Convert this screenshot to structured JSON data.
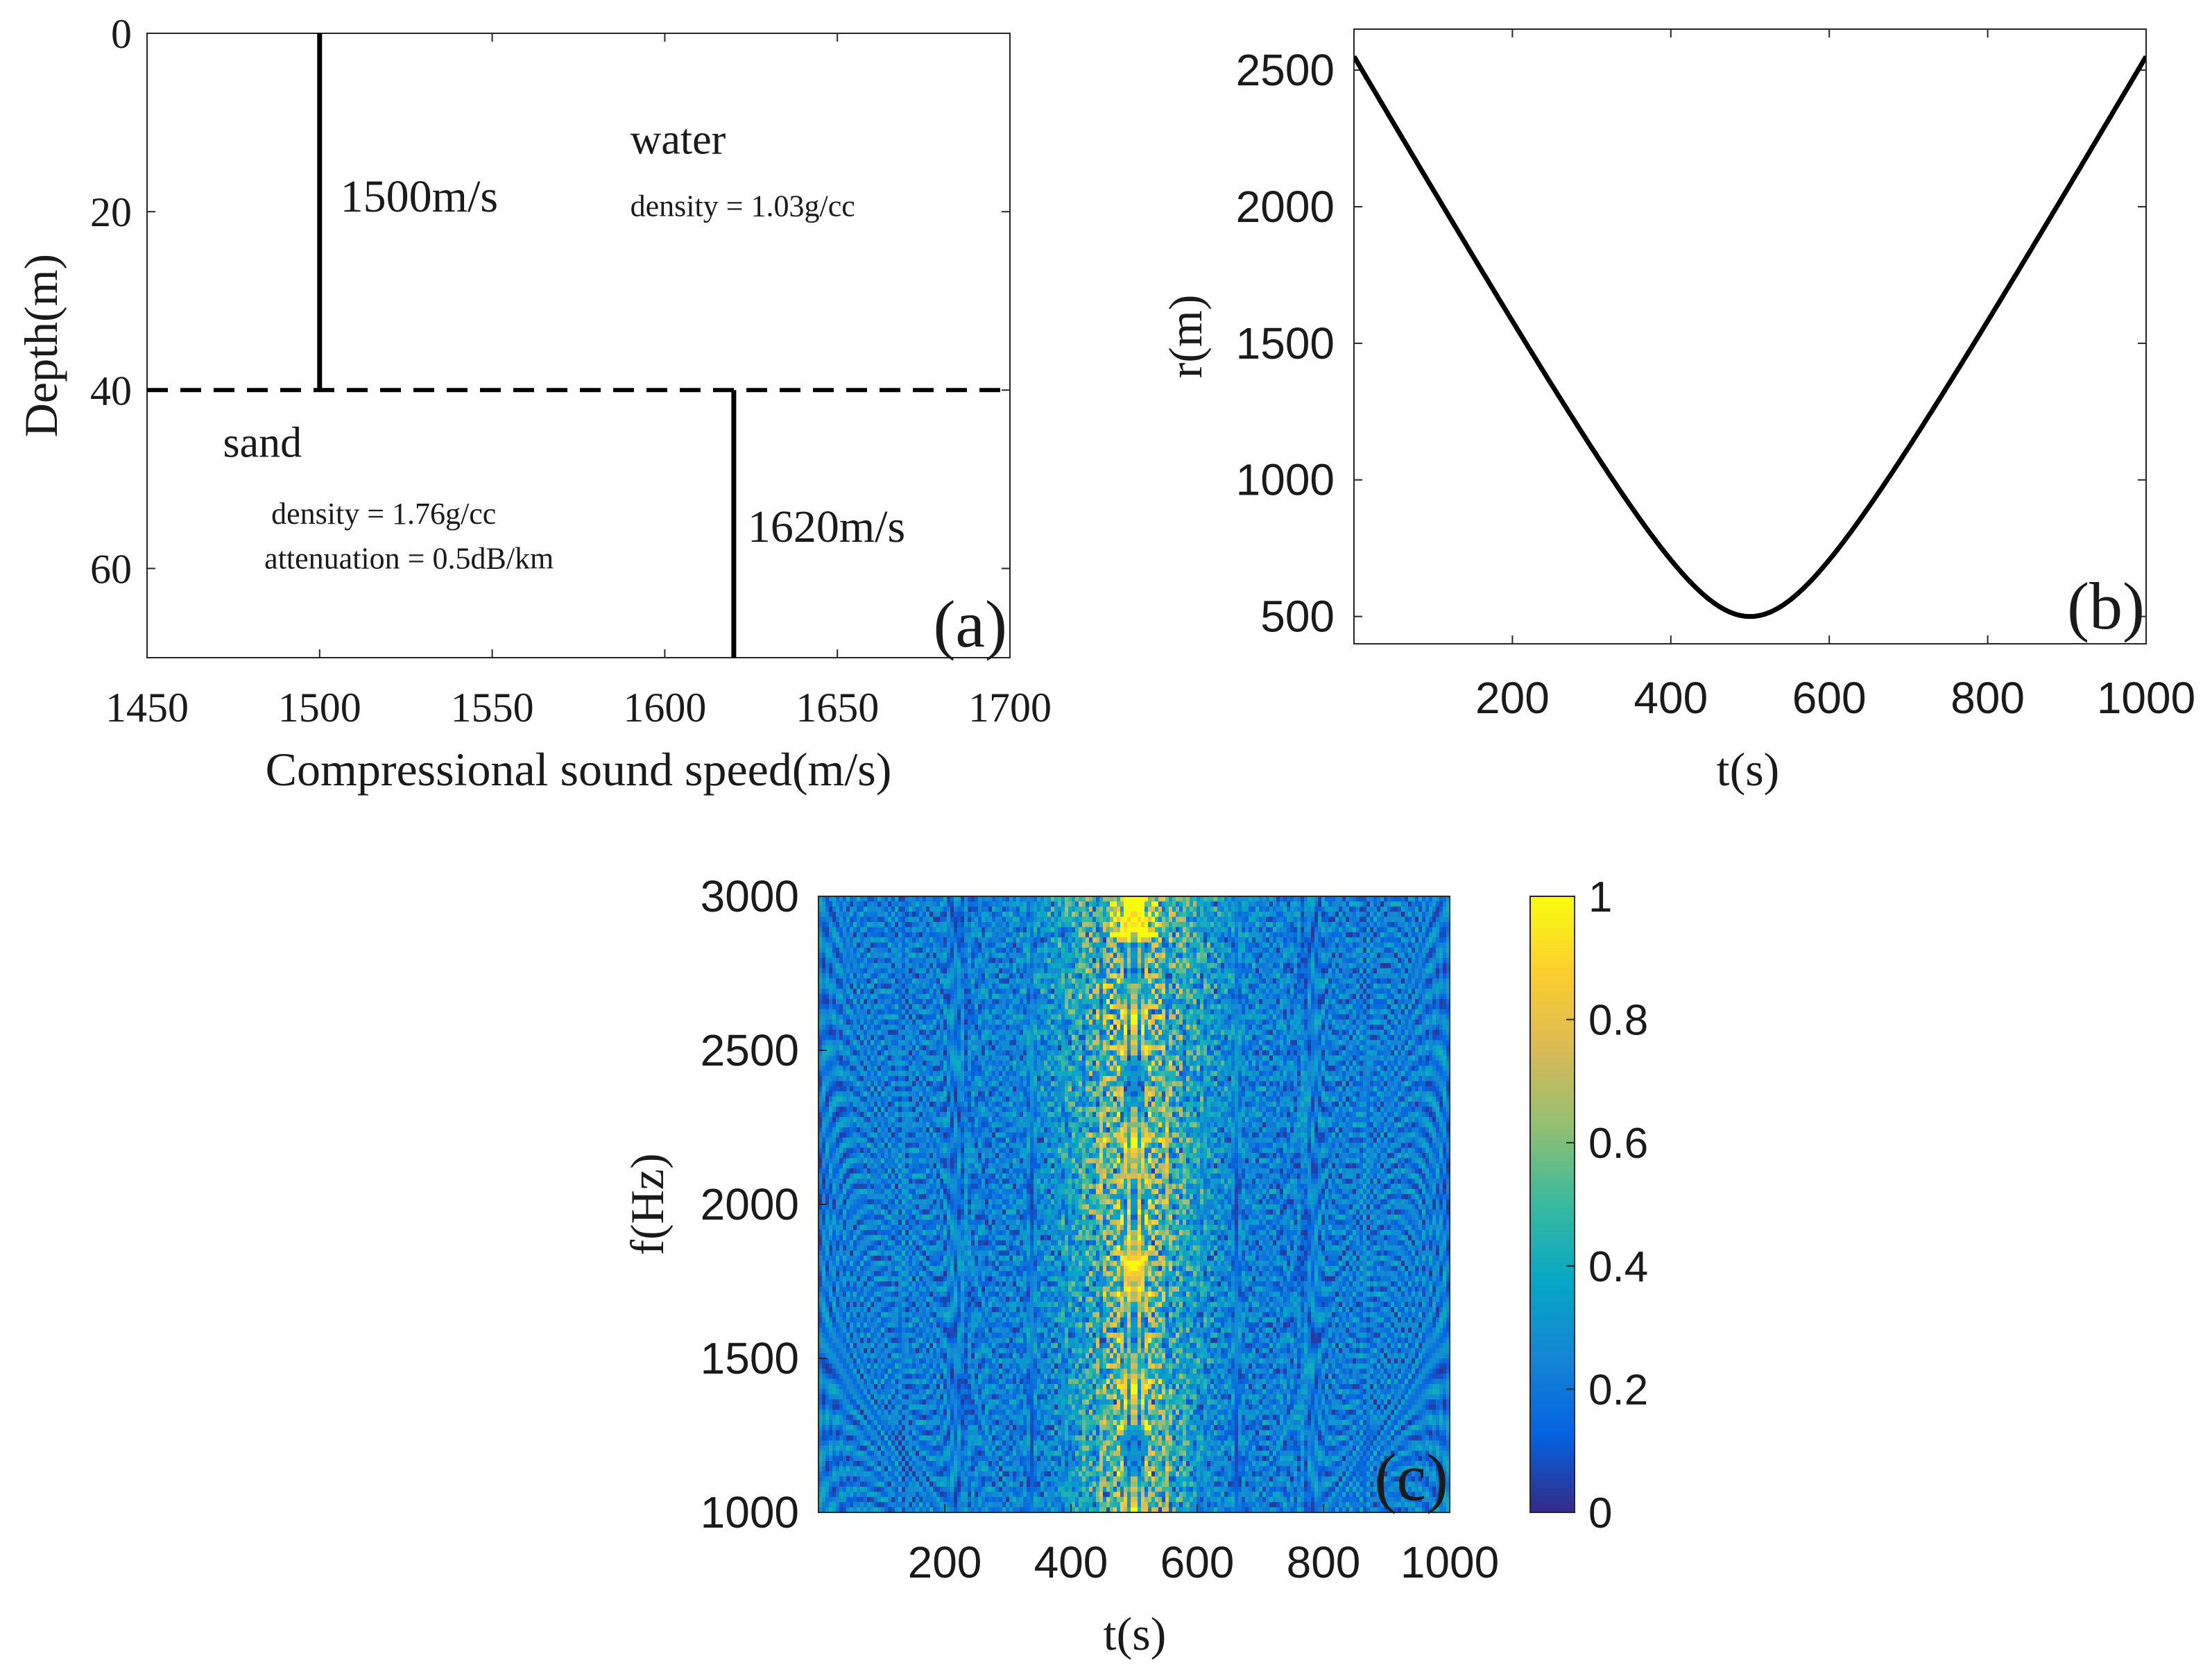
{
  "figure": {
    "panels": [
      "(a)",
      "(b)",
      "(c)"
    ]
  },
  "colors": {
    "axis": "#262626",
    "line": "#000000",
    "parula": [
      "#352a87",
      "#0363e1",
      "#1485d4",
      "#06a7c6",
      "#38b99e",
      "#92bf73",
      "#d9ba56",
      "#fcce2e",
      "#f9fb0e"
    ]
  },
  "chart_data": [
    {
      "id": "a",
      "type": "line",
      "panel_label": "(a)",
      "xlabel": "Compressional sound speed(m/s)",
      "ylabel": "Depth(m)",
      "xlim": [
        1450,
        1700
      ],
      "ylim": [
        70,
        0
      ],
      "y_reversed": true,
      "xticks": [
        1450,
        1500,
        1550,
        1600,
        1650,
        1700
      ],
      "yticks": [
        0,
        20,
        40,
        60
      ],
      "series": [
        {
          "name": "water sound speed",
          "style": "solid",
          "x": [
            1500,
            1500
          ],
          "y": [
            0,
            40
          ]
        },
        {
          "name": "sand sound speed",
          "style": "solid",
          "x": [
            1620,
            1620
          ],
          "y": [
            40,
            70
          ]
        },
        {
          "name": "interface",
          "style": "dashed",
          "x": [
            1450,
            1700
          ],
          "y": [
            40,
            40
          ]
        }
      ],
      "annotations": [
        {
          "key": "water_speed",
          "text": "1500m/s",
          "x": 1506,
          "y": 20
        },
        {
          "key": "water",
          "text": "water",
          "x": 1590,
          "y": 13.5
        },
        {
          "key": "water_density",
          "text": "density = 1.03g/cc",
          "x": 1590,
          "y": 20.5
        },
        {
          "key": "sand",
          "text": "sand",
          "x": 1472,
          "y": 47.5
        },
        {
          "key": "sand_density",
          "text": "density = 1.76g/cc",
          "x": 1486,
          "y": 55
        },
        {
          "key": "sand_attenuation",
          "text": "attenuation = 0.5dB/km",
          "x": 1484,
          "y": 60
        },
        {
          "key": "sand_speed",
          "text": "1620m/s",
          "x": 1624,
          "y": 57
        }
      ]
    },
    {
      "id": "b",
      "type": "line",
      "panel_label": "(b)",
      "xlabel": "t(s)",
      "ylabel": "r(m)",
      "xlim": [
        0,
        1000
      ],
      "ylim": [
        400,
        2650
      ],
      "xticks": [
        200,
        400,
        600,
        800,
        1000
      ],
      "yticks": [
        500,
        1000,
        1500,
        2000,
        2500
      ],
      "series": [
        {
          "name": "range",
          "x": [
            0,
            50,
            100,
            150,
            200,
            250,
            300,
            350,
            400,
            450,
            500,
            550,
            600,
            650,
            700,
            750,
            800,
            850,
            900,
            950,
            1000
          ],
          "y": [
            2550,
            2304,
            2062,
            1825,
            1595,
            1375,
            1167,
            975,
            806,
            667,
            500,
            667,
            806,
            975,
            1167,
            1375,
            1595,
            1825,
            2062,
            2304,
            2550
          ]
        }
      ]
    },
    {
      "id": "c",
      "type": "heatmap",
      "panel_label": "(c)",
      "xlabel": "t(s)",
      "ylabel": "f(Hz)",
      "xlim": [
        0,
        1000
      ],
      "ylim": [
        1000,
        3000
      ],
      "xticks": [
        200,
        400,
        600,
        800,
        1000
      ],
      "yticks": [
        1000,
        1500,
        2000,
        2500,
        3000
      ],
      "colorbar": {
        "min": 0,
        "max": 1,
        "ticks": [
          0,
          0.2,
          0.4,
          0.6,
          0.8,
          1
        ],
        "colormap": "parula"
      },
      "description_values": {
        "peak_t": 500,
        "min_range_m": 500
      }
    }
  ]
}
